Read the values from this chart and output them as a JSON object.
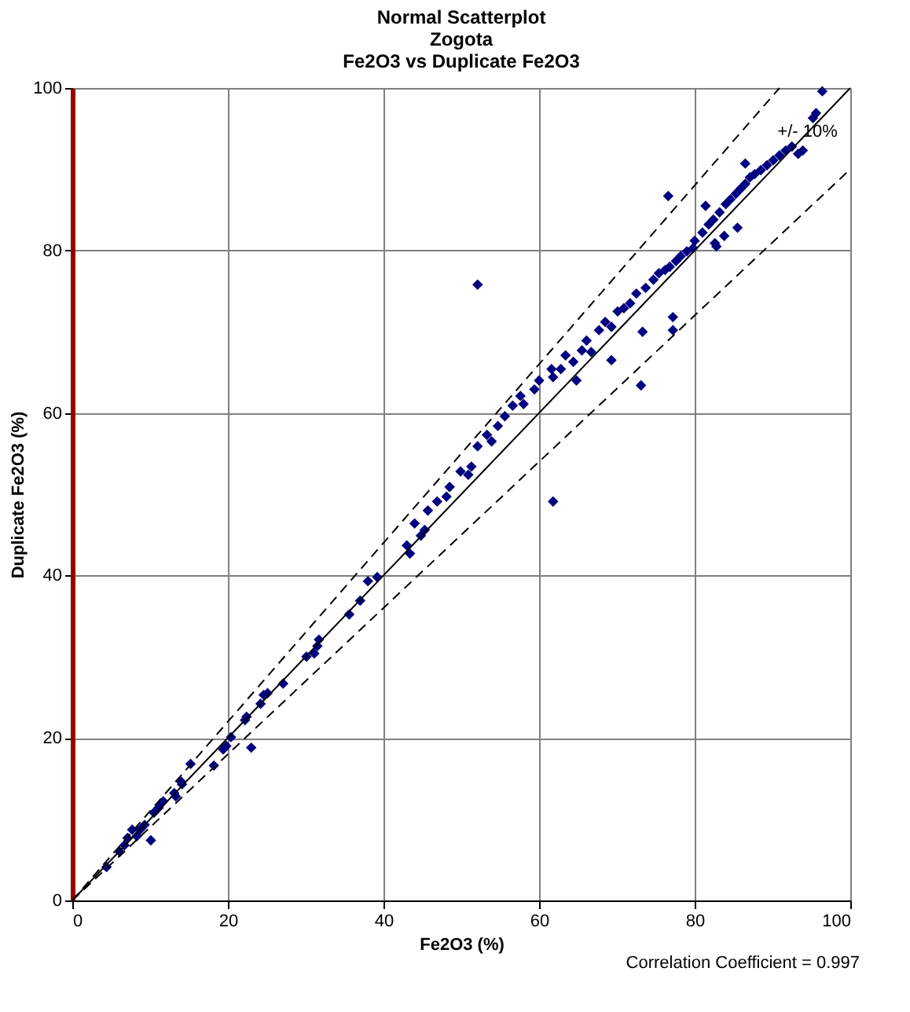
{
  "chart_data": {
    "type": "scatter",
    "title": "Normal Scatterplot\nZogota\nFe2O3 vs Duplicate Fe2O3",
    "xlabel": "Fe2O3 (%)",
    "ylabel": "Duplicate Fe2O3 (%)",
    "xlim": [
      0,
      100
    ],
    "ylim": [
      0,
      100
    ],
    "xticks": [
      0,
      20,
      40,
      60,
      80,
      100
    ],
    "yticks": [
      0,
      20,
      40,
      60,
      80,
      100
    ],
    "grid": true,
    "series": [
      {
        "marker": "diamond",
        "color": "#000080",
        "x": [
          4.4,
          6.1,
          6.7,
          7.1,
          7.7,
          8.7,
          8.3,
          9.3,
          10.1,
          10.5,
          11.1,
          11.3,
          11.7,
          13.3,
          13.1,
          13.9,
          14.1,
          15.2,
          18.2,
          19.4,
          19.8,
          20.4,
          22.2,
          22.4,
          23.0,
          24.2,
          24.6,
          25.1,
          27.1,
          30.1,
          31.5,
          31.7,
          31.1,
          35.6,
          37.0,
          38.0,
          39.2,
          43.0,
          43.4,
          44.0,
          44.8,
          45.3,
          45.7,
          46.9,
          48.1,
          48.5,
          49.9,
          51.3,
          50.9,
          52.1,
          52.1,
          53.3,
          53.9,
          54.7,
          55.6,
          56.6,
          57.6,
          58.0,
          59.4,
          60.0,
          61.6,
          61.8,
          61.8,
          62.8,
          64.8,
          64.4,
          63.4,
          65.5,
          66.7,
          66.1,
          67.7,
          68.5,
          69.3,
          69.3,
          70.1,
          70.9,
          71.7,
          72.5,
          73.1,
          73.3,
          73.7,
          74.7,
          75.4,
          76.2,
          76.6,
          76.8,
          77.2,
          77.2,
          77.6,
          78.2,
          79.0,
          79.8,
          80.0,
          81.0,
          81.4,
          81.8,
          82.4,
          82.6,
          82.8,
          83.2,
          83.8,
          84.0,
          84.6,
          85.3,
          85.5,
          85.9,
          86.5,
          86.5,
          87.1,
          87.7,
          88.5,
          89.3,
          90.1,
          90.9,
          91.7,
          92.5,
          93.3,
          93.9,
          95.2,
          95.6,
          96.4
        ],
        "values": [
          4.1,
          6.0,
          6.8,
          7.7,
          8.7,
          8.7,
          7.9,
          9.3,
          7.4,
          10.8,
          11.4,
          11.8,
          12.2,
          12.8,
          13.2,
          14.7,
          14.3,
          16.8,
          16.6,
          18.6,
          19.0,
          20.1,
          22.2,
          22.6,
          18.8,
          24.2,
          25.3,
          25.5,
          26.7,
          30.0,
          31.3,
          32.1,
          30.4,
          35.2,
          36.9,
          39.3,
          39.8,
          43.7,
          42.7,
          46.4,
          44.9,
          45.6,
          48.0,
          49.1,
          49.7,
          50.9,
          52.8,
          53.4,
          52.4,
          55.9,
          75.8,
          57.3,
          56.5,
          58.4,
          59.6,
          60.9,
          62.1,
          61.1,
          62.9,
          64.0,
          65.4,
          64.4,
          49.1,
          65.4,
          64.0,
          66.3,
          67.1,
          67.7,
          67.5,
          68.9,
          70.2,
          71.2,
          70.6,
          66.5,
          72.5,
          72.9,
          73.5,
          74.7,
          63.4,
          70.0,
          75.4,
          76.4,
          77.2,
          77.6,
          86.7,
          78.0,
          71.8,
          70.2,
          78.7,
          79.3,
          79.9,
          80.3,
          81.2,
          82.2,
          85.5,
          83.2,
          83.8,
          80.9,
          80.5,
          84.7,
          81.8,
          85.7,
          86.3,
          87.0,
          82.8,
          87.6,
          88.2,
          90.7,
          89.0,
          89.4,
          89.9,
          90.5,
          91.1,
          91.7,
          92.3,
          92.8,
          91.9,
          92.3,
          96.3,
          96.9,
          99.6
        ]
      },
      {
        "type": "line",
        "marker": "none",
        "color": "#000000",
        "line_style": "solid",
        "x": [
          0,
          100
        ],
        "values": [
          0,
          100
        ]
      },
      {
        "type": "line",
        "marker": "none",
        "color": "#000000",
        "line_style": "dashed",
        "x": [
          0,
          90.9
        ],
        "values": [
          0,
          100
        ]
      },
      {
        "type": "line",
        "marker": "none",
        "color": "#000000",
        "line_style": "dashed",
        "x": [
          0,
          100
        ],
        "values": [
          0,
          90
        ]
      }
    ],
    "annotations": [
      {
        "text": "+/- 10%",
        "x": 94.5,
        "y": 94.6
      },
      "Correlation Coefficient = 0.997"
    ]
  }
}
